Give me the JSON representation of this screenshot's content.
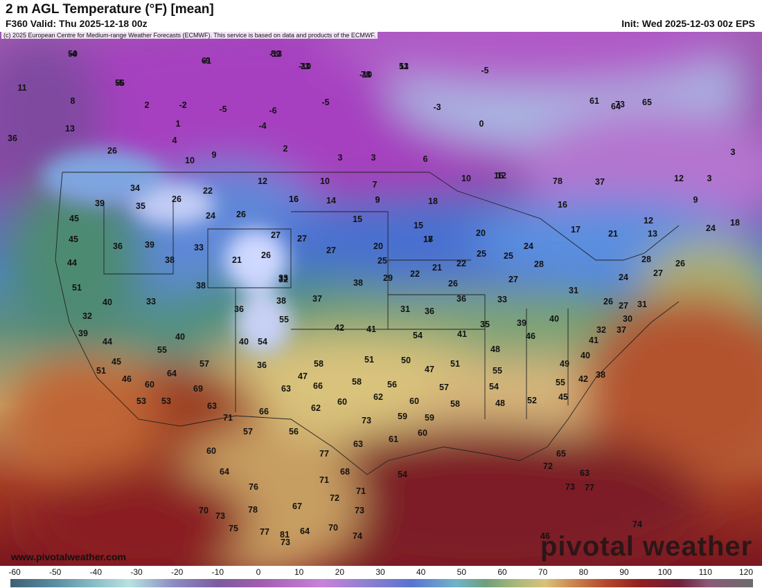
{
  "header": {
    "title": "2 m AGL Temperature (°F) [mean]",
    "valid": "F360 Valid: Thu 2025-12-18 00z",
    "init": "Init: Wed 2025-12-03 00z EPS",
    "copyright": "(c) 2025 European Centre for Medium-range Weather Forecasts (ECMWF). This service is based on data and products of the ECMWF."
  },
  "footer": {
    "url": "www.pivotalweather.com",
    "brand": "pivotal weather"
  },
  "colorbar": {
    "ticks": [
      "-60",
      "-50",
      "-40",
      "-30",
      "-20",
      "-10",
      "0",
      "10",
      "20",
      "30",
      "40",
      "50",
      "60",
      "70",
      "80",
      "90",
      "100",
      "110",
      "120"
    ]
  },
  "map": {
    "labels": [
      "-4",
      "-13",
      "-9",
      "-10",
      "-10",
      "11",
      "-5",
      "11",
      "-5",
      "-2",
      "-5",
      "8",
      "2",
      "-2",
      "-5",
      "-6",
      "-3",
      "1",
      "-4",
      "0",
      "13",
      "4",
      "10",
      "9",
      "2",
      "3",
      "3",
      "6",
      "26",
      "12",
      "10",
      "9",
      "16",
      "12",
      "36",
      "34",
      "22",
      "16",
      "14",
      "7",
      "9",
      "18",
      "10",
      "16",
      "16",
      "26",
      "35",
      "27",
      "24",
      "26",
      "15",
      "15",
      "18",
      "45",
      "39",
      "36",
      "39",
      "33",
      "21",
      "27",
      "26",
      "17",
      "20",
      "20",
      "24",
      "45",
      "38",
      "33",
      "27",
      "25",
      "22",
      "21",
      "22",
      "25",
      "44",
      "38",
      "32",
      "29",
      "25",
      "26",
      "27",
      "28",
      "51",
      "40",
      "33",
      "36",
      "38",
      "37",
      "38",
      "31",
      "36",
      "33",
      "31",
      "32",
      "55",
      "42",
      "41",
      "40",
      "36",
      "35",
      "39",
      "40",
      "39",
      "54",
      "40",
      "54",
      "41",
      "46",
      "44",
      "55",
      "57",
      "36",
      "47",
      "51",
      "48",
      "45",
      "58",
      "50",
      "51",
      "47",
      "49",
      "51",
      "46",
      "60",
      "64",
      "69",
      "63",
      "66",
      "58",
      "56",
      "55",
      "54",
      "48",
      "52",
      "55",
      "53",
      "53",
      "63",
      "71",
      "66",
      "62",
      "60",
      "62",
      "60",
      "57",
      "58",
      "54",
      "57",
      "56",
      "73",
      "59",
      "59",
      "61",
      "60",
      "60",
      "64",
      "76",
      "77",
      "63",
      "68",
      "65",
      "72",
      "73",
      "71",
      "71",
      "67",
      "72",
      "73",
      "70",
      "73",
      "75",
      "78",
      "77",
      "81",
      "73",
      "64",
      "70",
      "74",
      "77",
      "74",
      "63",
      "64",
      "61",
      "73",
      "65",
      "78",
      "37",
      "12",
      "3",
      "3",
      "9",
      "12",
      "13",
      "24",
      "18",
      "17",
      "21",
      "28",
      "24",
      "27",
      "26",
      "26",
      "31",
      "27",
      "30",
      "32",
      "37",
      "41",
      "38",
      "40",
      "42",
      "45",
      "46",
      "50",
      "59",
      "61",
      "73",
      "78",
      "53",
      "56"
    ]
  }
}
